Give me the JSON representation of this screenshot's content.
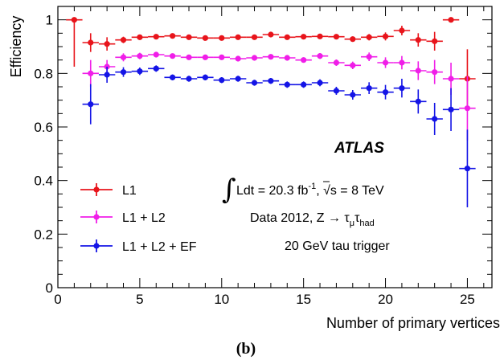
{
  "chart_data": {
    "type": "scatter",
    "title": "",
    "xlabel": "Number of primary vertices",
    "ylabel": "Efficiency",
    "xlim": [
      0,
      26.5
    ],
    "ylim": [
      0,
      1.05
    ],
    "x_ticks": [
      0,
      5,
      10,
      15,
      20,
      25
    ],
    "x_tick_labels": [
      "0",
      "5",
      "10",
      "15",
      "20",
      "25"
    ],
    "y_ticks": [
      0,
      0.2,
      0.4,
      0.6,
      0.8,
      1
    ],
    "y_tick_labels": [
      "0",
      "0.2",
      "0.4",
      "0.6",
      "0.8",
      "1"
    ],
    "grid": false,
    "legend_position": "bottom-left",
    "series": [
      {
        "name": "L1",
        "color": "#e8141b",
        "x": [
          1,
          2,
          3,
          4,
          5,
          6,
          7,
          8,
          9,
          10,
          11,
          12,
          13,
          14,
          15,
          16,
          17,
          18,
          19,
          20,
          21,
          22,
          23,
          24,
          25
        ],
        "y": [
          1.0,
          0.915,
          0.91,
          0.925,
          0.935,
          0.937,
          0.94,
          0.935,
          0.932,
          0.932,
          0.935,
          0.935,
          0.945,
          0.935,
          0.937,
          0.938,
          0.937,
          0.928,
          0.935,
          0.938,
          0.96,
          0.925,
          0.92,
          1.0,
          0.78
        ],
        "err_low": [
          0.175,
          0.035,
          0.025,
          0.012,
          0.01,
          0.008,
          0.007,
          0.007,
          0.007,
          0.007,
          0.007,
          0.007,
          0.007,
          0.007,
          0.008,
          0.008,
          0.009,
          0.01,
          0.012,
          0.015,
          0.018,
          0.025,
          0.035,
          0.01,
          0.1
        ],
        "err_high": [
          0.0,
          0.035,
          0.025,
          0.012,
          0.01,
          0.008,
          0.007,
          0.007,
          0.007,
          0.007,
          0.007,
          0.007,
          0.007,
          0.007,
          0.008,
          0.008,
          0.009,
          0.01,
          0.012,
          0.015,
          0.018,
          0.025,
          0.035,
          0.0,
          0.11
        ]
      },
      {
        "name": "L1 + L2",
        "color": "#f01ee8",
        "x": [
          2,
          3,
          4,
          5,
          6,
          7,
          8,
          9,
          10,
          11,
          12,
          13,
          14,
          15,
          16,
          17,
          18,
          19,
          20,
          21,
          22,
          23,
          24,
          25
        ],
        "y": [
          0.8,
          0.825,
          0.86,
          0.865,
          0.87,
          0.865,
          0.86,
          0.86,
          0.86,
          0.855,
          0.858,
          0.862,
          0.858,
          0.85,
          0.865,
          0.84,
          0.83,
          0.862,
          0.84,
          0.84,
          0.81,
          0.805,
          0.78,
          0.67
        ],
        "err_low": [
          0.05,
          0.025,
          0.015,
          0.012,
          0.01,
          0.009,
          0.009,
          0.009,
          0.009,
          0.009,
          0.009,
          0.009,
          0.009,
          0.01,
          0.011,
          0.012,
          0.014,
          0.016,
          0.02,
          0.025,
          0.035,
          0.045,
          0.06,
          0.12
        ],
        "err_high": [
          0.05,
          0.025,
          0.015,
          0.012,
          0.01,
          0.009,
          0.009,
          0.009,
          0.009,
          0.009,
          0.009,
          0.009,
          0.009,
          0.01,
          0.011,
          0.012,
          0.014,
          0.016,
          0.02,
          0.025,
          0.035,
          0.045,
          0.06,
          0.12
        ]
      },
      {
        "name": "L1 + L2 + EF",
        "color": "#1414e6",
        "x": [
          2,
          3,
          4,
          5,
          6,
          7,
          8,
          9,
          10,
          11,
          12,
          13,
          14,
          15,
          16,
          17,
          18,
          19,
          20,
          21,
          22,
          23,
          24,
          25
        ],
        "y": [
          0.685,
          0.795,
          0.805,
          0.808,
          0.818,
          0.785,
          0.78,
          0.785,
          0.775,
          0.78,
          0.765,
          0.772,
          0.758,
          0.758,
          0.765,
          0.735,
          0.72,
          0.745,
          0.73,
          0.745,
          0.695,
          0.63,
          0.665,
          0.445
        ],
        "err_low": [
          0.075,
          0.03,
          0.018,
          0.014,
          0.012,
          0.011,
          0.011,
          0.011,
          0.011,
          0.011,
          0.011,
          0.011,
          0.012,
          0.012,
          0.013,
          0.015,
          0.018,
          0.022,
          0.027,
          0.035,
          0.045,
          0.06,
          0.08,
          0.145
        ],
        "err_high": [
          0.075,
          0.03,
          0.018,
          0.014,
          0.012,
          0.011,
          0.011,
          0.011,
          0.011,
          0.011,
          0.011,
          0.011,
          0.012,
          0.012,
          0.013,
          0.015,
          0.018,
          0.022,
          0.027,
          0.035,
          0.045,
          0.06,
          0.08,
          0.145
        ]
      }
    ],
    "annotations": {
      "brand": "ATLAS",
      "lumi_lead": "Ldt = 20.3 fb",
      "lumi_exp": "-1",
      "lumi_mid": ", ",
      "lumi_sqrt": "√s",
      "lumi_tail": " = 8 TeV",
      "integral_symbol": "∫",
      "data_lead": "Data 2012, Z  → τ",
      "data_sub1": "μ",
      "data_tau2": "τ",
      "data_sub2": "had",
      "trigger": "20 GeV tau trigger",
      "panel": "(b)"
    }
  }
}
